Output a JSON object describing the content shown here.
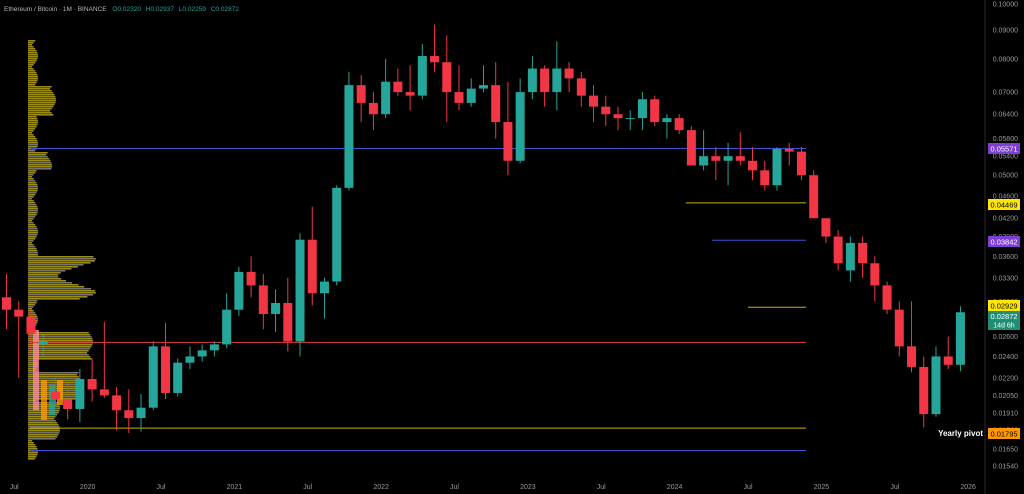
{
  "header": {
    "symbol_title": "Ethereum / Bitcoin · 1M · BINANCE",
    "open": "O0.02320",
    "high": "H0.02937",
    "low": "L0.02259",
    "close": "C0.02872"
  },
  "price_axis": {
    "ticks": [
      "0.10000",
      "0.09000",
      "0.08000",
      "0.07000",
      "0.06400",
      "0.05800",
      "0.05400",
      "0.05000",
      "0.04600",
      "0.04200",
      "0.03900",
      "0.03600",
      "0.03300",
      "0.03000",
      "0.02800",
      "0.02600",
      "0.02400",
      "0.02200",
      "0.02050",
      "0.01910",
      "0.01780",
      "0.01650",
      "0.01540"
    ]
  },
  "time_axis": {
    "labels": [
      "Jul",
      "2020",
      "Jul",
      "2021",
      "Jul",
      "2022",
      "Jul",
      "2023",
      "Jul",
      "2024",
      "Jul",
      "2025",
      "Jul",
      "2026",
      "Jul"
    ]
  },
  "level_tags": {
    "level_1": "0.05571",
    "level_2": "0.04469",
    "level_3": "0.03842",
    "level_4": "0.02929",
    "current_price": "0.02872",
    "countdown": "14d 6h",
    "yearly_pivot_value": "0.01795",
    "yearly_pivot_label": "Yearly pivot"
  },
  "colors": {
    "up": "#26a69a",
    "down": "#f23645",
    "profile": "#b5a518",
    "profile_value_area": "#8a8a8a",
    "level_blue": "#3f51d4",
    "level_yellow": "#c8b400",
    "level_red": "#e0403a",
    "tag_purple": "#7e3fd6",
    "tag_yellow": "#ffe600",
    "tag_green": "#1e8f74",
    "tag_orange": "#ff9800"
  },
  "chart_data": {
    "type": "candlestick",
    "interval": "1M",
    "y_scale": "log",
    "ylim": [
      0.0154,
      0.1
    ],
    "levels": [
      {
        "value": 0.05571,
        "color": "blue"
      },
      {
        "value": 0.04469,
        "color": "yellow"
      },
      {
        "value": 0.03842,
        "color": "blue"
      },
      {
        "value": 0.02929,
        "color": "yellow"
      },
      {
        "value": 0.0254,
        "color": "red"
      },
      {
        "value": 0.01795,
        "color": "yellow",
        "name": "Yearly pivot"
      },
      {
        "value": 0.0164,
        "color": "blue"
      }
    ],
    "candles": [
      {
        "t": "2019-06",
        "o": 0.0305,
        "h": 0.0335,
        "l": 0.0268,
        "c": 0.029
      },
      {
        "t": "2019-07",
        "o": 0.029,
        "h": 0.03,
        "l": 0.022,
        "c": 0.0282
      },
      {
        "t": "2019-08",
        "o": 0.0282,
        "h": 0.029,
        "l": 0.0242,
        "c": 0.0263
      },
      {
        "t": "2019-09",
        "o": 0.0252,
        "h": 0.0262,
        "l": 0.024,
        "c": 0.0255
      },
      {
        "t": "2019-10",
        "o": 0.0208,
        "h": 0.022,
        "l": 0.0196,
        "c": 0.0202
      },
      {
        "t": "2019-11",
        "o": 0.0202,
        "h": 0.0215,
        "l": 0.0186,
        "c": 0.0194
      },
      {
        "t": "2019-12",
        "o": 0.0194,
        "h": 0.0228,
        "l": 0.0184,
        "c": 0.0219
      },
      {
        "t": "2020-01",
        "o": 0.0219,
        "h": 0.0238,
        "l": 0.02,
        "c": 0.021
      },
      {
        "t": "2020-02",
        "o": 0.021,
        "h": 0.0276,
        "l": 0.0203,
        "c": 0.0205
      },
      {
        "t": "2020-03",
        "o": 0.0205,
        "h": 0.0212,
        "l": 0.0178,
        "c": 0.0193
      },
      {
        "t": "2020-04",
        "o": 0.0193,
        "h": 0.021,
        "l": 0.0176,
        "c": 0.0187
      },
      {
        "t": "2020-05",
        "o": 0.0187,
        "h": 0.0206,
        "l": 0.0177,
        "c": 0.0195
      },
      {
        "t": "2020-06",
        "o": 0.0195,
        "h": 0.0255,
        "l": 0.0193,
        "c": 0.025
      },
      {
        "t": "2020-07",
        "o": 0.025,
        "h": 0.0275,
        "l": 0.0202,
        "c": 0.0207
      },
      {
        "t": "2020-08",
        "o": 0.0207,
        "h": 0.0238,
        "l": 0.0204,
        "c": 0.0234
      },
      {
        "t": "2020-09",
        "o": 0.0234,
        "h": 0.025,
        "l": 0.0228,
        "c": 0.024
      },
      {
        "t": "2020-10",
        "o": 0.024,
        "h": 0.0252,
        "l": 0.0235,
        "c": 0.0246
      },
      {
        "t": "2020-11",
        "o": 0.0246,
        "h": 0.0255,
        "l": 0.024,
        "c": 0.0252
      },
      {
        "t": "2020-12",
        "o": 0.0252,
        "h": 0.031,
        "l": 0.0248,
        "c": 0.029
      },
      {
        "t": "2021-01",
        "o": 0.029,
        "h": 0.0345,
        "l": 0.0283,
        "c": 0.0338
      },
      {
        "t": "2021-02",
        "o": 0.0338,
        "h": 0.036,
        "l": 0.0305,
        "c": 0.032
      },
      {
        "t": "2021-03",
        "o": 0.032,
        "h": 0.0335,
        "l": 0.0268,
        "c": 0.0285
      },
      {
        "t": "2021-04",
        "o": 0.0285,
        "h": 0.0315,
        "l": 0.0265,
        "c": 0.0298
      },
      {
        "t": "2021-05",
        "o": 0.0298,
        "h": 0.033,
        "l": 0.0245,
        "c": 0.0255
      },
      {
        "t": "2021-06",
        "o": 0.0255,
        "h": 0.0395,
        "l": 0.024,
        "c": 0.0385
      },
      {
        "t": "2021-07",
        "o": 0.0385,
        "h": 0.044,
        "l": 0.0295,
        "c": 0.031
      },
      {
        "t": "2021-08",
        "o": 0.031,
        "h": 0.033,
        "l": 0.028,
        "c": 0.0325
      },
      {
        "t": "2021-09",
        "o": 0.0325,
        "h": 0.048,
        "l": 0.032,
        "c": 0.0475
      },
      {
        "t": "2021-10",
        "o": 0.0475,
        "h": 0.076,
        "l": 0.047,
        "c": 0.072
      },
      {
        "t": "2021-11",
        "o": 0.072,
        "h": 0.075,
        "l": 0.062,
        "c": 0.067
      },
      {
        "t": "2021-12",
        "o": 0.067,
        "h": 0.07,
        "l": 0.06,
        "c": 0.064
      },
      {
        "t": "2022-01",
        "o": 0.064,
        "h": 0.08,
        "l": 0.063,
        "c": 0.073
      },
      {
        "t": "2022-02",
        "o": 0.073,
        "h": 0.077,
        "l": 0.069,
        "c": 0.07
      },
      {
        "t": "2022-03",
        "o": 0.07,
        "h": 0.078,
        "l": 0.065,
        "c": 0.069
      },
      {
        "t": "2022-04",
        "o": 0.069,
        "h": 0.085,
        "l": 0.068,
        "c": 0.081
      },
      {
        "t": "2022-05",
        "o": 0.081,
        "h": 0.092,
        "l": 0.076,
        "c": 0.079
      },
      {
        "t": "2022-06",
        "o": 0.079,
        "h": 0.088,
        "l": 0.062,
        "c": 0.07
      },
      {
        "t": "2022-07",
        "o": 0.07,
        "h": 0.078,
        "l": 0.065,
        "c": 0.067
      },
      {
        "t": "2022-08",
        "o": 0.067,
        "h": 0.074,
        "l": 0.066,
        "c": 0.071
      },
      {
        "t": "2022-09",
        "o": 0.071,
        "h": 0.078,
        "l": 0.07,
        "c": 0.072
      },
      {
        "t": "2022-10",
        "o": 0.072,
        "h": 0.079,
        "l": 0.058,
        "c": 0.062
      },
      {
        "t": "2022-11",
        "o": 0.062,
        "h": 0.073,
        "l": 0.05,
        "c": 0.053
      },
      {
        "t": "2022-12",
        "o": 0.053,
        "h": 0.074,
        "l": 0.0525,
        "c": 0.07
      },
      {
        "t": "2023-01",
        "o": 0.07,
        "h": 0.081,
        "l": 0.068,
        "c": 0.077
      },
      {
        "t": "2023-02",
        "o": 0.077,
        "h": 0.078,
        "l": 0.066,
        "c": 0.07
      },
      {
        "t": "2023-03",
        "o": 0.07,
        "h": 0.086,
        "l": 0.065,
        "c": 0.077
      },
      {
        "t": "2023-04",
        "o": 0.077,
        "h": 0.079,
        "l": 0.07,
        "c": 0.074
      },
      {
        "t": "2023-05",
        "o": 0.074,
        "h": 0.076,
        "l": 0.066,
        "c": 0.069
      },
      {
        "t": "2023-06",
        "o": 0.069,
        "h": 0.072,
        "l": 0.062,
        "c": 0.066
      },
      {
        "t": "2023-07",
        "o": 0.066,
        "h": 0.069,
        "l": 0.061,
        "c": 0.064
      },
      {
        "t": "2023-08",
        "o": 0.064,
        "h": 0.066,
        "l": 0.06,
        "c": 0.063
      },
      {
        "t": "2023-09",
        "o": 0.063,
        "h": 0.065,
        "l": 0.06,
        "c": 0.063
      },
      {
        "t": "2023-10",
        "o": 0.063,
        "h": 0.07,
        "l": 0.06,
        "c": 0.068
      },
      {
        "t": "2023-11",
        "o": 0.068,
        "h": 0.069,
        "l": 0.061,
        "c": 0.062
      },
      {
        "t": "2023-12",
        "o": 0.062,
        "h": 0.064,
        "l": 0.058,
        "c": 0.063
      },
      {
        "t": "2024-01",
        "o": 0.063,
        "h": 0.064,
        "l": 0.059,
        "c": 0.06
      },
      {
        "t": "2024-02",
        "o": 0.06,
        "h": 0.061,
        "l": 0.052,
        "c": 0.052
      },
      {
        "t": "2024-03",
        "o": 0.052,
        "h": 0.06,
        "l": 0.051,
        "c": 0.054
      },
      {
        "t": "2024-04",
        "o": 0.054,
        "h": 0.056,
        "l": 0.049,
        "c": 0.053
      },
      {
        "t": "2024-05",
        "o": 0.053,
        "h": 0.057,
        "l": 0.048,
        "c": 0.054
      },
      {
        "t": "2024-06",
        "o": 0.054,
        "h": 0.0595,
        "l": 0.052,
        "c": 0.053
      },
      {
        "t": "2024-07",
        "o": 0.053,
        "h": 0.056,
        "l": 0.049,
        "c": 0.051
      },
      {
        "t": "2024-08",
        "o": 0.051,
        "h": 0.053,
        "l": 0.047,
        "c": 0.048
      },
      {
        "t": "2024-09",
        "o": 0.048,
        "h": 0.056,
        "l": 0.047,
        "c": 0.0556
      },
      {
        "t": "2024-10",
        "o": 0.0556,
        "h": 0.057,
        "l": 0.052,
        "c": 0.055
      },
      {
        "t": "2024-11",
        "o": 0.055,
        "h": 0.056,
        "l": 0.049,
        "c": 0.05
      },
      {
        "t": "2024-12",
        "o": 0.05,
        "h": 0.051,
        "l": 0.042,
        "c": 0.042
      },
      {
        "t": "2025-01",
        "o": 0.042,
        "h": 0.042,
        "l": 0.038,
        "c": 0.039
      },
      {
        "t": "2025-02",
        "o": 0.039,
        "h": 0.04,
        "l": 0.034,
        "c": 0.035
      },
      {
        "t": "2025-03",
        "o": 0.034,
        "h": 0.039,
        "l": 0.0325,
        "c": 0.038
      },
      {
        "t": "2025-04",
        "o": 0.038,
        "h": 0.039,
        "l": 0.033,
        "c": 0.035
      },
      {
        "t": "2025-05",
        "o": 0.035,
        "h": 0.036,
        "l": 0.03,
        "c": 0.032
      },
      {
        "t": "2025-06",
        "o": 0.032,
        "h": 0.0325,
        "l": 0.0285,
        "c": 0.029
      },
      {
        "t": "2025-07",
        "o": 0.029,
        "h": 0.03,
        "l": 0.024,
        "c": 0.025
      },
      {
        "t": "2025-08",
        "o": 0.025,
        "h": 0.03,
        "l": 0.0225,
        "c": 0.023
      },
      {
        "t": "2025-09",
        "o": 0.023,
        "h": 0.024,
        "l": 0.018,
        "c": 0.019
      },
      {
        "t": "2025-10",
        "o": 0.019,
        "h": 0.025,
        "l": 0.0188,
        "c": 0.024
      },
      {
        "t": "2025-11",
        "o": 0.024,
        "h": 0.026,
        "l": 0.0228,
        "c": 0.0232
      },
      {
        "t": "2025-12",
        "o": 0.0232,
        "h": 0.0294,
        "l": 0.0226,
        "c": 0.0287
      }
    ]
  }
}
